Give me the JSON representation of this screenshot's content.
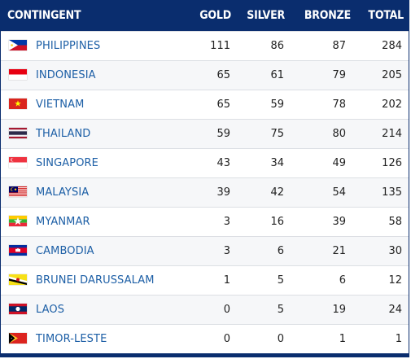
{
  "table": {
    "headers": {
      "country": "CONTINGENT",
      "gold": "GOLD",
      "silver": "SILVER",
      "bronze": "BRONZE",
      "total": "TOTAL"
    },
    "rows": [
      {
        "country": "PHILIPPINES",
        "flag": "philippines-flag-icon",
        "gold": "111",
        "silver": "86",
        "bronze": "87",
        "total": "284"
      },
      {
        "country": "INDONESIA",
        "flag": "indonesia-flag-icon",
        "gold": "65",
        "silver": "61",
        "bronze": "79",
        "total": "205"
      },
      {
        "country": "VIETNAM",
        "flag": "vietnam-flag-icon",
        "gold": "65",
        "silver": "59",
        "bronze": "78",
        "total": "202"
      },
      {
        "country": "THAILAND",
        "flag": "thailand-flag-icon",
        "gold": "59",
        "silver": "75",
        "bronze": "80",
        "total": "214"
      },
      {
        "country": "SINGAPORE",
        "flag": "singapore-flag-icon",
        "gold": "43",
        "silver": "34",
        "bronze": "49",
        "total": "126"
      },
      {
        "country": "MALAYSIA",
        "flag": "malaysia-flag-icon",
        "gold": "39",
        "silver": "42",
        "bronze": "54",
        "total": "135"
      },
      {
        "country": "MYANMAR",
        "flag": "myanmar-flag-icon",
        "gold": "3",
        "silver": "16",
        "bronze": "39",
        "total": "58"
      },
      {
        "country": "CAMBODIA",
        "flag": "cambodia-flag-icon",
        "gold": "3",
        "silver": "6",
        "bronze": "21",
        "total": "30"
      },
      {
        "country": "BRUNEI DARUSSALAM",
        "flag": "brunei-flag-icon",
        "gold": "1",
        "silver": "5",
        "bronze": "6",
        "total": "12"
      },
      {
        "country": "LAOS",
        "flag": "laos-flag-icon",
        "gold": "0",
        "silver": "5",
        "bronze": "19",
        "total": "24"
      },
      {
        "country": "TIMOR-LESTE",
        "flag": "timor-leste-flag-icon",
        "gold": "0",
        "silver": "0",
        "bronze": "1",
        "total": "1"
      }
    ]
  },
  "colors": {
    "header_bg": "#0a2d6e",
    "header_text": "#ffffff",
    "country_link": "#1d5fa6",
    "row_alt": "#f6f7f9",
    "row_border": "#dcdfe4"
  }
}
